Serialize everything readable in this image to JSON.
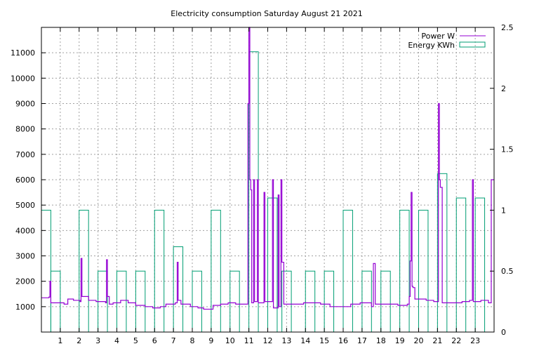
{
  "chart_data": {
    "type": "line",
    "title": "Electricity consumption Saturday August 21 2021",
    "xlabel": "",
    "ylabel": "",
    "y2label": "",
    "xlim": [
      0,
      24
    ],
    "ylim": [
      0,
      12000
    ],
    "y2lim": [
      0,
      2.5
    ],
    "x_ticks": [
      1,
      2,
      3,
      4,
      5,
      6,
      7,
      8,
      9,
      10,
      11,
      12,
      13,
      14,
      15,
      16,
      17,
      18,
      19,
      20,
      21,
      22,
      23
    ],
    "y_ticks": [
      1000,
      2000,
      3000,
      4000,
      5000,
      6000,
      7000,
      8000,
      9000,
      10000,
      11000
    ],
    "y2_ticks": [
      0,
      0.5,
      1,
      1.5,
      2,
      2.5
    ],
    "y2_tick_labels": [
      "0",
      "0.5",
      "1",
      "1.5",
      "2",
      "2.5"
    ],
    "grid": true,
    "legend_position": "top-right",
    "colors": {
      "power": "#9400d3",
      "energy": "#009e73"
    },
    "series": [
      {
        "name": "Power W",
        "type": "step-line",
        "axis": "y",
        "points": [
          [
            0,
            1350
          ],
          [
            0.4,
            1380
          ],
          [
            0.45,
            2000
          ],
          [
            0.5,
            1150
          ],
          [
            1.2,
            1100
          ],
          [
            1.4,
            1300
          ],
          [
            1.7,
            1250
          ],
          [
            2.05,
            1200
          ],
          [
            2.1,
            2900
          ],
          [
            2.15,
            1400
          ],
          [
            2.5,
            1250
          ],
          [
            2.9,
            1200
          ],
          [
            3.4,
            1150
          ],
          [
            3.45,
            2850
          ],
          [
            3.5,
            1400
          ],
          [
            3.6,
            1100
          ],
          [
            3.8,
            1150
          ],
          [
            4.2,
            1250
          ],
          [
            4.6,
            1150
          ],
          [
            5.0,
            1050
          ],
          [
            5.5,
            1000
          ],
          [
            5.9,
            950
          ],
          [
            6.3,
            1000
          ],
          [
            6.6,
            1100
          ],
          [
            7.1,
            1150
          ],
          [
            7.2,
            2750
          ],
          [
            7.25,
            1250
          ],
          [
            7.4,
            1100
          ],
          [
            7.9,
            1000
          ],
          [
            8.3,
            950
          ],
          [
            8.6,
            900
          ],
          [
            9.1,
            1050
          ],
          [
            9.5,
            1100
          ],
          [
            9.9,
            1150
          ],
          [
            10.3,
            1100
          ],
          [
            10.9,
            1100
          ],
          [
            10.95,
            9000
          ],
          [
            11.0,
            12000
          ],
          [
            11.05,
            6000
          ],
          [
            11.1,
            5600
          ],
          [
            11.15,
            1150
          ],
          [
            11.25,
            6000
          ],
          [
            11.3,
            1200
          ],
          [
            11.45,
            6000
          ],
          [
            11.5,
            1150
          ],
          [
            11.8,
            5500
          ],
          [
            11.85,
            1200
          ],
          [
            12.25,
            6000
          ],
          [
            12.3,
            950
          ],
          [
            12.55,
            5400
          ],
          [
            12.6,
            1000
          ],
          [
            12.7,
            6000
          ],
          [
            12.75,
            2750
          ],
          [
            12.85,
            1100
          ],
          [
            13.5,
            1100
          ],
          [
            13.9,
            1150
          ],
          [
            14.8,
            1100
          ],
          [
            15.3,
            1000
          ],
          [
            15.9,
            1000
          ],
          [
            16.4,
            1100
          ],
          [
            16.9,
            1150
          ],
          [
            17.5,
            1000
          ],
          [
            17.6,
            2700
          ],
          [
            17.7,
            1100
          ],
          [
            18.2,
            1100
          ],
          [
            18.9,
            1050
          ],
          [
            19.4,
            1100
          ],
          [
            19.5,
            1400
          ],
          [
            19.55,
            2800
          ],
          [
            19.6,
            5500
          ],
          [
            19.65,
            1800
          ],
          [
            19.7,
            1750
          ],
          [
            19.8,
            1300
          ],
          [
            20.4,
            1250
          ],
          [
            20.8,
            1200
          ],
          [
            21.05,
            9000
          ],
          [
            21.1,
            6000
          ],
          [
            21.15,
            5700
          ],
          [
            21.25,
            1150
          ],
          [
            21.8,
            1150
          ],
          [
            22.3,
            1200
          ],
          [
            22.7,
            1250
          ],
          [
            22.85,
            6000
          ],
          [
            22.9,
            1200
          ],
          [
            23.3,
            1250
          ],
          [
            23.7,
            1150
          ],
          [
            23.85,
            6000
          ],
          [
            24,
            6000
          ]
        ]
      },
      {
        "name": "Energy KWh",
        "type": "boxes",
        "axis": "y2",
        "bar_width": 0.5,
        "x": [
          0,
          0.5,
          2,
          3,
          4,
          5,
          6,
          7,
          8,
          9,
          10,
          11,
          12,
          12.75,
          14,
          15,
          16,
          17,
          18,
          19,
          20,
          21,
          22,
          23
        ],
        "values": [
          1.0,
          0.5,
          1.0,
          0.5,
          0.5,
          0.5,
          1.0,
          0.7,
          0.5,
          1.0,
          0.5,
          2.3,
          1.1,
          0.5,
          0.5,
          0.5,
          1.0,
          0.5,
          0.5,
          1.0,
          1.0,
          1.3,
          1.1,
          1.1
        ]
      }
    ]
  }
}
